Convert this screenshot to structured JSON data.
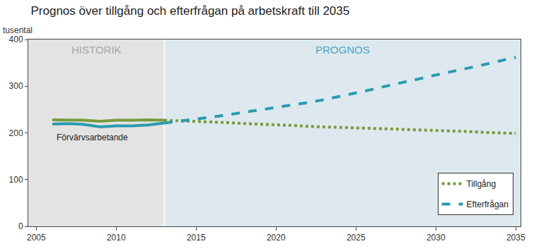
{
  "chart_data": {
    "type": "line",
    "title": "Prognos över tillgång och efterfrågan på arbetskraft till 2035",
    "ylabel": "tusental",
    "x": [
      2006,
      2007,
      2008,
      2009,
      2010,
      2011,
      2012,
      2013,
      2014,
      2015,
      2016,
      2017,
      2018,
      2019,
      2020,
      2021,
      2022,
      2023,
      2024,
      2025,
      2026,
      2027,
      2028,
      2029,
      2030,
      2031,
      2032,
      2033,
      2034,
      2035
    ],
    "xlim": [
      2004.5,
      2035.3
    ],
    "xticks": [
      2005,
      2010,
      2015,
      2020,
      2025,
      2030,
      2035
    ],
    "ylim": [
      0,
      400
    ],
    "yticks": [
      0,
      100,
      200,
      300,
      400
    ],
    "grid": false,
    "legend": "bottom right",
    "periods": [
      {
        "label": "HISTORIK",
        "x0": 2004.5,
        "x1": 2013
      },
      {
        "label": "PROGNOS",
        "x0": 2013,
        "x1": 2035.3
      }
    ],
    "annotations": [
      {
        "text": "Förvärvsarbetande",
        "x": 2008.5,
        "y": 190
      }
    ],
    "series": [
      {
        "name": "Förvärvsarbetande",
        "color": "#2a9bb0",
        "line_style": "solid",
        "values": [
          219,
          220,
          218,
          213,
          215,
          215,
          217,
          221,
          null,
          null,
          null,
          null,
          null,
          null,
          null,
          null,
          null,
          null,
          null,
          null,
          null,
          null,
          null,
          null,
          null,
          null,
          null,
          null,
          null,
          null
        ]
      },
      {
        "name": "Tillgång",
        "color": "#7a9a3c",
        "line_style": "solid",
        "values": [
          228,
          228,
          227,
          225,
          227,
          227,
          228,
          227,
          null,
          null,
          null,
          null,
          null,
          null,
          null,
          null,
          null,
          null,
          null,
          null,
          null,
          null,
          null,
          null,
          null,
          null,
          null,
          null,
          null,
          null
        ]
      },
      {
        "name": "Tillgång",
        "color": "#7a9a3c",
        "line_style": "dotted",
        "values": [
          null,
          null,
          null,
          null,
          null,
          null,
          null,
          227,
          226,
          225,
          223,
          222,
          220,
          219,
          217,
          216,
          214,
          213,
          211,
          210,
          209,
          208,
          207,
          206,
          205,
          204,
          203,
          201,
          200,
          199
        ]
      },
      {
        "name": "Efterfrågan",
        "color": "#2a9bb0",
        "line_style": "dashed",
        "values": [
          null,
          null,
          null,
          null,
          null,
          null,
          null,
          221,
          225,
          230,
          234,
          239,
          244,
          249,
          254,
          260,
          265,
          271,
          278,
          286,
          293,
          301,
          308,
          316,
          324,
          331,
          339,
          346,
          354,
          362
        ]
      }
    ]
  }
}
